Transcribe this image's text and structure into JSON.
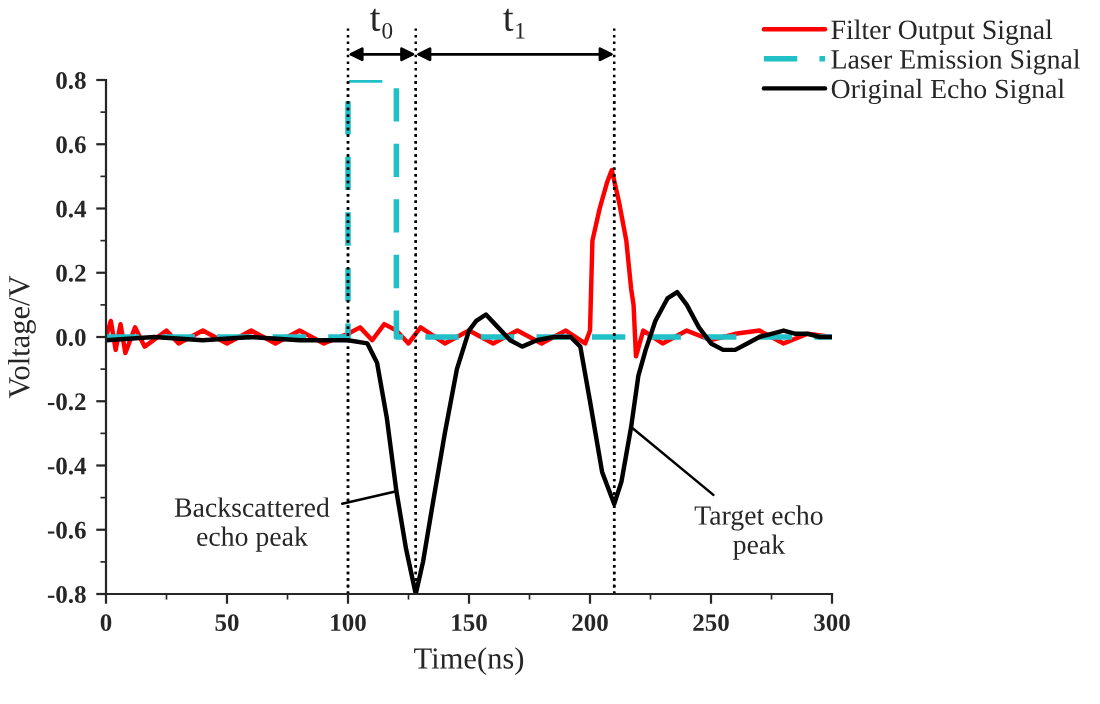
{
  "chart_data": {
    "type": "line",
    "xlabel": "Time(ns)",
    "ylabel": "Voltage/V",
    "xlim": [
      0,
      300
    ],
    "xticks": [
      0,
      50,
      100,
      150,
      200,
      250,
      300
    ],
    "ylim": [
      -0.8,
      0.8
    ],
    "yticks": [
      {
        "value": -0.8,
        "label": "-0.8"
      },
      {
        "value": -0.6,
        "label": "-0.6"
      },
      {
        "value": -0.4,
        "label": "-0.4"
      },
      {
        "value": -0.2,
        "label": "-0.2"
      },
      {
        "value": 0,
        "label": "0.0"
      },
      {
        "value": 0.2,
        "label": "0.2"
      },
      {
        "value": 0.4,
        "label": "0.4"
      },
      {
        "value": 0.6,
        "label": "0.6"
      },
      {
        "value": 0.8,
        "label": "0.8"
      }
    ],
    "grid": false,
    "legend": "top right",
    "series": [
      {
        "name": "Filter Output Signal",
        "color": "#ff0000",
        "line_style": "solid",
        "x": [
          0,
          2,
          4,
          6,
          8,
          12,
          16,
          25,
          30,
          40,
          50,
          60,
          70,
          80,
          90,
          100,
          105,
          110,
          115,
          120,
          125,
          130,
          140,
          150,
          160,
          170,
          180,
          190,
          198,
          200,
          201,
          204,
          207,
          209,
          212,
          215,
          217,
          218,
          219,
          222,
          230,
          240,
          250,
          260,
          270,
          280,
          290,
          300
        ],
        "values": [
          0,
          0.05,
          -0.04,
          0.04,
          -0.05,
          0.03,
          -0.03,
          0.02,
          -0.02,
          0.02,
          -0.02,
          0.02,
          -0.02,
          0.02,
          -0.02,
          0.01,
          0.03,
          -0.01,
          0.04,
          0.02,
          -0.02,
          0.03,
          -0.02,
          0.02,
          -0.02,
          0.02,
          -0.02,
          0.02,
          -0.02,
          0.02,
          0.3,
          0.4,
          0.48,
          0.52,
          0.42,
          0.3,
          0.15,
          0.1,
          -0.06,
          0.02,
          -0.02,
          0.02,
          -0.01,
          0.01,
          0.02,
          -0.02,
          0.01,
          0
        ]
      },
      {
        "name": "Laser Emission Signal",
        "color": "#20c0c8",
        "line_style": "dashed",
        "x": [
          0,
          100,
          100,
          120,
          120,
          300
        ],
        "values": [
          0,
          0,
          0.8,
          0.8,
          0,
          0
        ]
      },
      {
        "name": "Original Echo Signal",
        "color": "#000000",
        "line_style": "solid",
        "x": [
          0,
          20,
          40,
          60,
          80,
          100,
          108,
          112,
          116,
          120,
          124,
          128,
          131,
          135,
          140,
          145,
          150,
          153,
          157,
          162,
          167,
          172,
          178,
          185,
          192,
          196,
          200,
          205,
          210,
          213,
          217,
          220,
          223,
          227,
          232,
          236,
          240,
          245,
          250,
          255,
          260,
          265,
          270,
          275,
          280,
          285,
          290,
          295,
          300
        ],
        "values": [
          -0.01,
          0,
          -0.01,
          0,
          -0.01,
          -0.01,
          -0.02,
          -0.08,
          -0.25,
          -0.48,
          -0.66,
          -0.8,
          -0.7,
          -0.52,
          -0.3,
          -0.1,
          0.02,
          0.05,
          0.07,
          0.03,
          -0.01,
          -0.03,
          -0.01,
          0,
          0,
          -0.03,
          -0.2,
          -0.42,
          -0.52,
          -0.45,
          -0.28,
          -0.12,
          -0.04,
          0.05,
          0.12,
          0.14,
          0.1,
          0.03,
          -0.02,
          -0.04,
          -0.04,
          -0.02,
          0,
          0.01,
          0.02,
          0.01,
          0.01,
          0,
          0
        ]
      }
    ],
    "ref_lines": [
      {
        "axis": "x",
        "value": 100,
        "line_style": "dotted",
        "color": "#000000"
      },
      {
        "axis": "x",
        "value": 128,
        "line_style": "dotted",
        "color": "#000000"
      },
      {
        "axis": "x",
        "value": 210,
        "line_style": "dotted",
        "color": "#000000"
      }
    ],
    "annotations": [
      "t₀",
      "t₁",
      {
        "text": "Backscattered\necho peak",
        "x": 120,
        "y": -0.48
      },
      {
        "text": "Target echo\npeak",
        "x": 217,
        "y": -0.28
      }
    ]
  }
}
